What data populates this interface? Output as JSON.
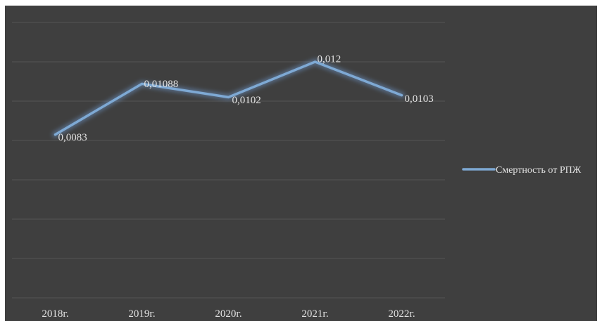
{
  "chart_data": {
    "type": "line",
    "categories": [
      "2018г.",
      "2019г.",
      "2020г.",
      "2021г.",
      "2022г."
    ],
    "series": [
      {
        "name": "Смертность от РПЖ",
        "values": [
          0.0083,
          0.01088,
          0.0102,
          0.012,
          0.0103
        ],
        "labels": [
          "0,0083",
          "0,01088",
          "0,0102",
          "0,012",
          "0,0103"
        ]
      }
    ],
    "ylim": [
      0,
      0.014
    ],
    "grid": true,
    "legend_position": "right",
    "colors": {
      "background": "#3f3f3f",
      "line": "#7ea9d4",
      "grid": "#555555",
      "text": "#e3e3e3"
    }
  }
}
